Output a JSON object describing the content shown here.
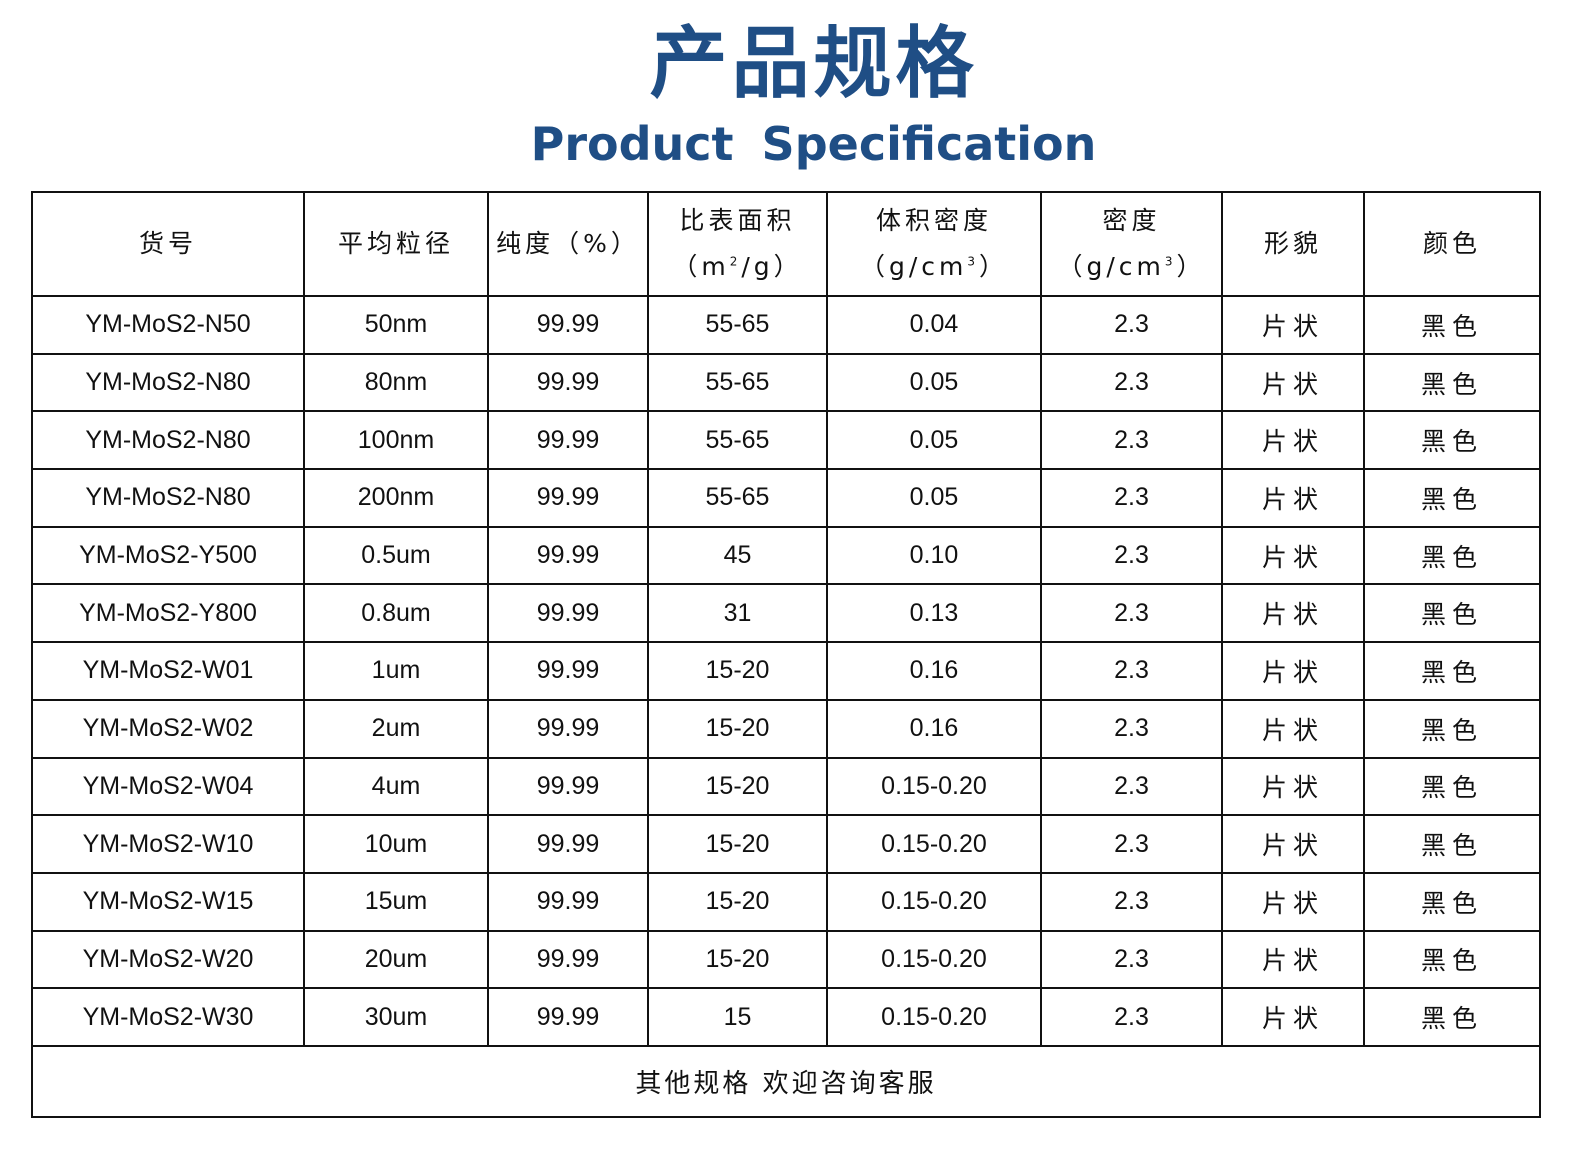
{
  "title": {
    "cn": "产品规格",
    "en": "Product Specification",
    "color": "#1f4e85"
  },
  "headers": [
    {
      "line1": "货号"
    },
    {
      "line1": "平均粒径"
    },
    {
      "line1": "纯度（%）"
    },
    {
      "line1": "比表面积",
      "pre": "（m",
      "sup": "2",
      "post": "/g）"
    },
    {
      "line1": "体积密度",
      "pre": "（g/cm",
      "sup": "3",
      "post": "）"
    },
    {
      "line1": "密度",
      "pre": "（g/cm",
      "sup": "3",
      "post": "）"
    },
    {
      "line1": "形貌"
    },
    {
      "line1": "颜色"
    }
  ],
  "rows": [
    [
      "YM-MoS2-N50",
      "50nm",
      "99.99",
      "55-65",
      "0.04",
      "2.3",
      "片状",
      "黑色"
    ],
    [
      "YM-MoS2-N80",
      "80nm",
      "99.99",
      "55-65",
      "0.05",
      "2.3",
      "片状",
      "黑色"
    ],
    [
      "YM-MoS2-N80",
      "100nm",
      "99.99",
      "55-65",
      "0.05",
      "2.3",
      "片状",
      "黑色"
    ],
    [
      "YM-MoS2-N80",
      "200nm",
      "99.99",
      "55-65",
      "0.05",
      "2.3",
      "片状",
      "黑色"
    ],
    [
      "YM-MoS2-Y500",
      "0.5um",
      "99.99",
      "45",
      "0.10",
      "2.3",
      "片状",
      "黑色"
    ],
    [
      "YM-MoS2-Y800",
      "0.8um",
      "99.99",
      "31",
      "0.13",
      "2.3",
      "片状",
      "黑色"
    ],
    [
      "YM-MoS2-W01",
      "1um",
      "99.99",
      "15-20",
      "0.16",
      "2.3",
      "片状",
      "黑色"
    ],
    [
      "YM-MoS2-W02",
      "2um",
      "99.99",
      "15-20",
      "0.16",
      "2.3",
      "片状",
      "黑色"
    ],
    [
      "YM-MoS2-W04",
      "4um",
      "99.99",
      "15-20",
      "0.15-0.20",
      "2.3",
      "片状",
      "黑色"
    ],
    [
      "YM-MoS2-W10",
      "10um",
      "99.99",
      "15-20",
      "0.15-0.20",
      "2.3",
      "片状",
      "黑色"
    ],
    [
      "YM-MoS2-W15",
      "15um",
      "99.99",
      "15-20",
      "0.15-0.20",
      "2.3",
      "片状",
      "黑色"
    ],
    [
      "YM-MoS2-W20",
      "20um",
      "99.99",
      "15-20",
      "0.15-0.20",
      "2.3",
      "片状",
      "黑色"
    ],
    [
      "YM-MoS2-W30",
      "30um",
      "99.99",
      "15",
      "0.15-0.20",
      "2.3",
      "片状",
      "黑色"
    ]
  ],
  "footer": "其他规格  欢迎咨询客服"
}
